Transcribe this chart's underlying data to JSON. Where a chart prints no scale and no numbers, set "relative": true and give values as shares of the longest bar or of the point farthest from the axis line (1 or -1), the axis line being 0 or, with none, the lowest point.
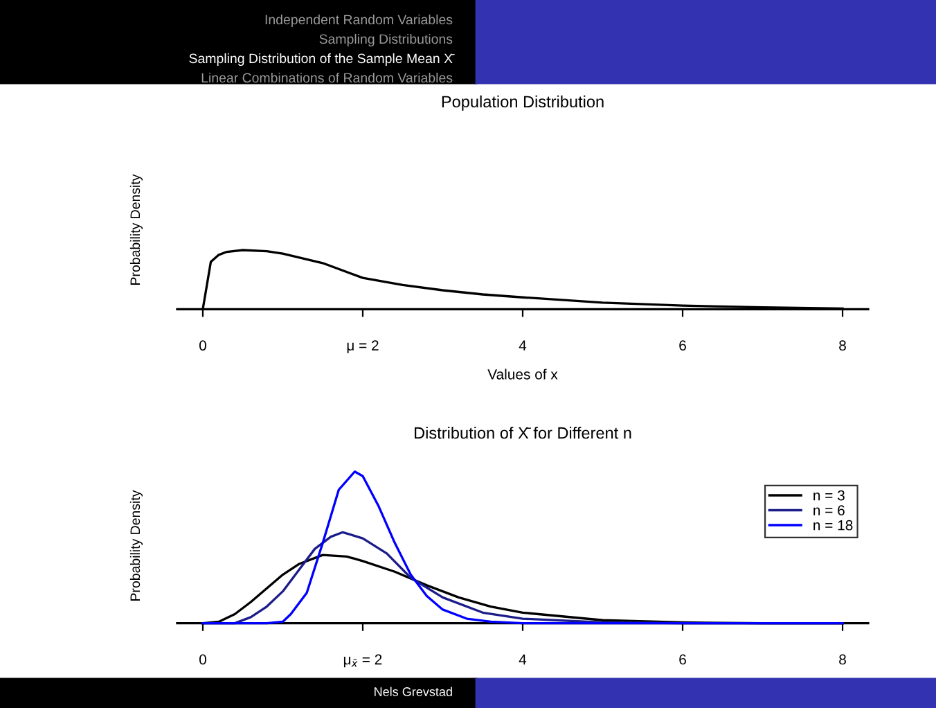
{
  "chart_data": [
    {
      "type": "line",
      "relative": true,
      "title": "Population Distribution",
      "xlabel": "Values of x",
      "ylabel": "Probability Density",
      "annotations": [
        "Independent Random Variables",
        "Sampling Distributions",
        "Sampling Distribution of the Sample Mean X̄",
        "Linear Combinations of Random Variables"
      ],
      "xlim": [
        -0.32,
        8.32
      ],
      "xticks": [
        0,
        {
          "value": 2,
          "label": "μ = 2"
        },
        4,
        6,
        8
      ],
      "grid": false,
      "legend": false,
      "marker": "none",
      "line_style": "solid",
      "series": [
        {
          "color": "#000000",
          "x": [
            0,
            0.1,
            0.2,
            0.3,
            0.5,
            0.8,
            1.0,
            1.5,
            2.0,
            2.5,
            3.0,
            3.5,
            4.0,
            5.0,
            6.0,
            7.0,
            8.0
          ],
          "values": [
            0,
            0.8,
            0.92,
            0.97,
            1.0,
            0.98,
            0.94,
            0.78,
            0.53,
            0.41,
            0.32,
            0.25,
            0.2,
            0.11,
            0.06,
            0.03,
            0.01
          ]
        }
      ]
    },
    {
      "type": "line",
      "relative": true,
      "title": "Distribution of X̄ for Different n",
      "ylabel": "Probability Density",
      "annotations": [
        "Nels Grevstad"
      ],
      "xlim": [
        -0.32,
        8.32
      ],
      "xticks": [
        0,
        {
          "value": 2,
          "label": "μ$_{x̄}$ = 2"
        },
        4,
        6,
        8
      ],
      "grid": false,
      "legend": "top right",
      "marker": "none",
      "line_style": "solid",
      "series": [
        {
          "name": "n = 3",
          "color": "#000000",
          "x": [
            0,
            0.2,
            0.4,
            0.6,
            0.8,
            1.0,
            1.2,
            1.5,
            1.8,
            2.0,
            2.4,
            2.8,
            3.2,
            3.6,
            4.0,
            5.0,
            6.0,
            7.0,
            8.0
          ],
          "values": [
            0,
            0.01,
            0.06,
            0.14,
            0.23,
            0.32,
            0.39,
            0.45,
            0.44,
            0.41,
            0.34,
            0.25,
            0.17,
            0.11,
            0.07,
            0.02,
            0.005,
            0,
            0
          ]
        },
        {
          "name": "n = 6",
          "color": "#1c1c8a",
          "x": [
            0,
            0.4,
            0.6,
            0.8,
            1.0,
            1.2,
            1.4,
            1.6,
            1.75,
            2.0,
            2.3,
            2.6,
            3.0,
            3.5,
            4.0,
            5.0,
            6.0,
            8.0
          ],
          "values": [
            0,
            0,
            0.04,
            0.11,
            0.21,
            0.35,
            0.49,
            0.57,
            0.6,
            0.56,
            0.46,
            0.3,
            0.17,
            0.07,
            0.03,
            0.005,
            0,
            0
          ]
        },
        {
          "name": "n = 18",
          "color": "#0000ff",
          "x": [
            0,
            0.8,
            1.0,
            1.1,
            1.3,
            1.5,
            1.7,
            1.9,
            2.0,
            2.2,
            2.4,
            2.6,
            2.8,
            3.0,
            3.3,
            3.6,
            4.0,
            8.0
          ],
          "values": [
            0,
            0,
            0.01,
            0.06,
            0.2,
            0.53,
            0.88,
            1.0,
            0.97,
            0.77,
            0.53,
            0.32,
            0.18,
            0.09,
            0.03,
            0.01,
            0,
            0
          ]
        }
      ]
    }
  ]
}
